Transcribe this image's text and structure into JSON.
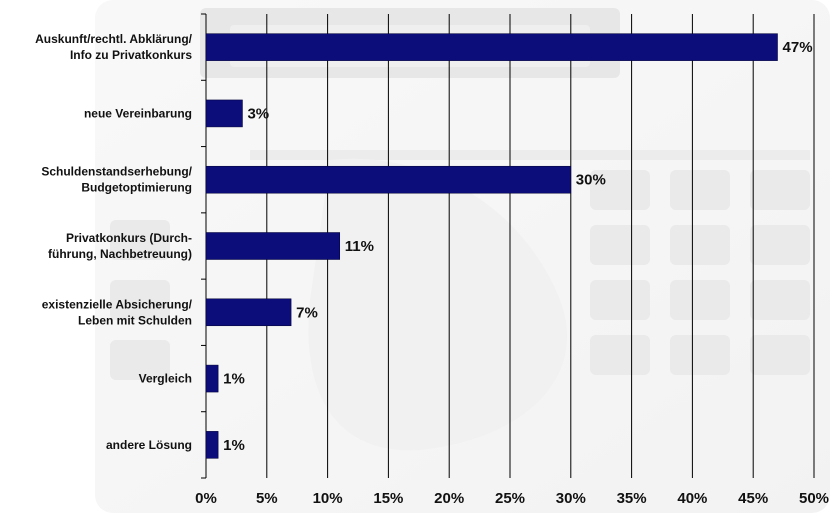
{
  "chart_data": {
    "type": "bar",
    "orientation": "horizontal",
    "categories": [
      [
        "Auskunft/rechtl. Abklärung/",
        "Info zu Privatkonkurs"
      ],
      [
        "neue Vereinbarung"
      ],
      [
        "Schuldenstandserhebung/",
        "Budgetoptimierung"
      ],
      [
        "Privatkonkurs (Durch-",
        "führung, Nachbetreuung)"
      ],
      [
        "existenzielle Absicherung/",
        "Leben mit Schulden"
      ],
      [
        "Vergleich"
      ],
      [
        "andere Lösung"
      ]
    ],
    "values": [
      47,
      3,
      30,
      11,
      7,
      1,
      1
    ],
    "value_labels": [
      "47%",
      "3%",
      "30%",
      "11%",
      "7%",
      "1%",
      "1%"
    ],
    "xlim": [
      0,
      50
    ],
    "xticks": [
      0,
      5,
      10,
      15,
      20,
      25,
      30,
      35,
      40,
      45,
      50
    ],
    "xtick_labels": [
      "0%",
      "5%",
      "10%",
      "15%",
      "20%",
      "25%",
      "30%",
      "35%",
      "40%",
      "45%",
      "50%"
    ],
    "grid": "vertical",
    "bar_color": "#0c0c7a",
    "grid_color": "#000000",
    "background": "calculator photo (faded)"
  }
}
